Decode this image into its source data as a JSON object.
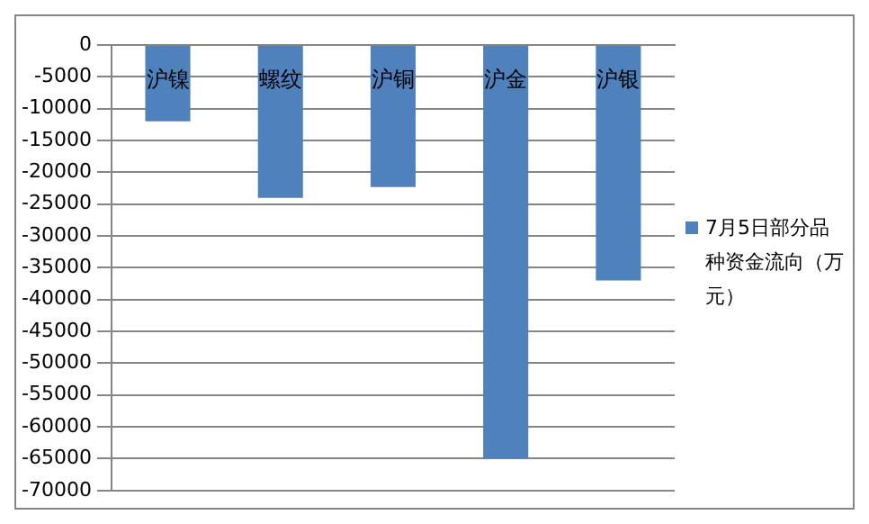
{
  "chart_data": {
    "type": "bar",
    "categories": [
      "沪镍",
      "螺纹",
      "沪铜",
      "沪金",
      "沪银"
    ],
    "series": [
      {
        "name": "7月5日部分品种资金流向（万元）",
        "color": "#4f81bd",
        "values": [
          -12000,
          -24000,
          -22300,
          -65000,
          -37000
        ]
      }
    ],
    "ylim": [
      -70000,
      0
    ],
    "yticks": [
      0,
      -5000,
      -10000,
      -15000,
      -20000,
      -25000,
      -30000,
      -35000,
      -40000,
      -45000,
      -50000,
      -55000,
      -60000,
      -65000,
      -70000
    ],
    "grid": "y",
    "legend": "right"
  }
}
